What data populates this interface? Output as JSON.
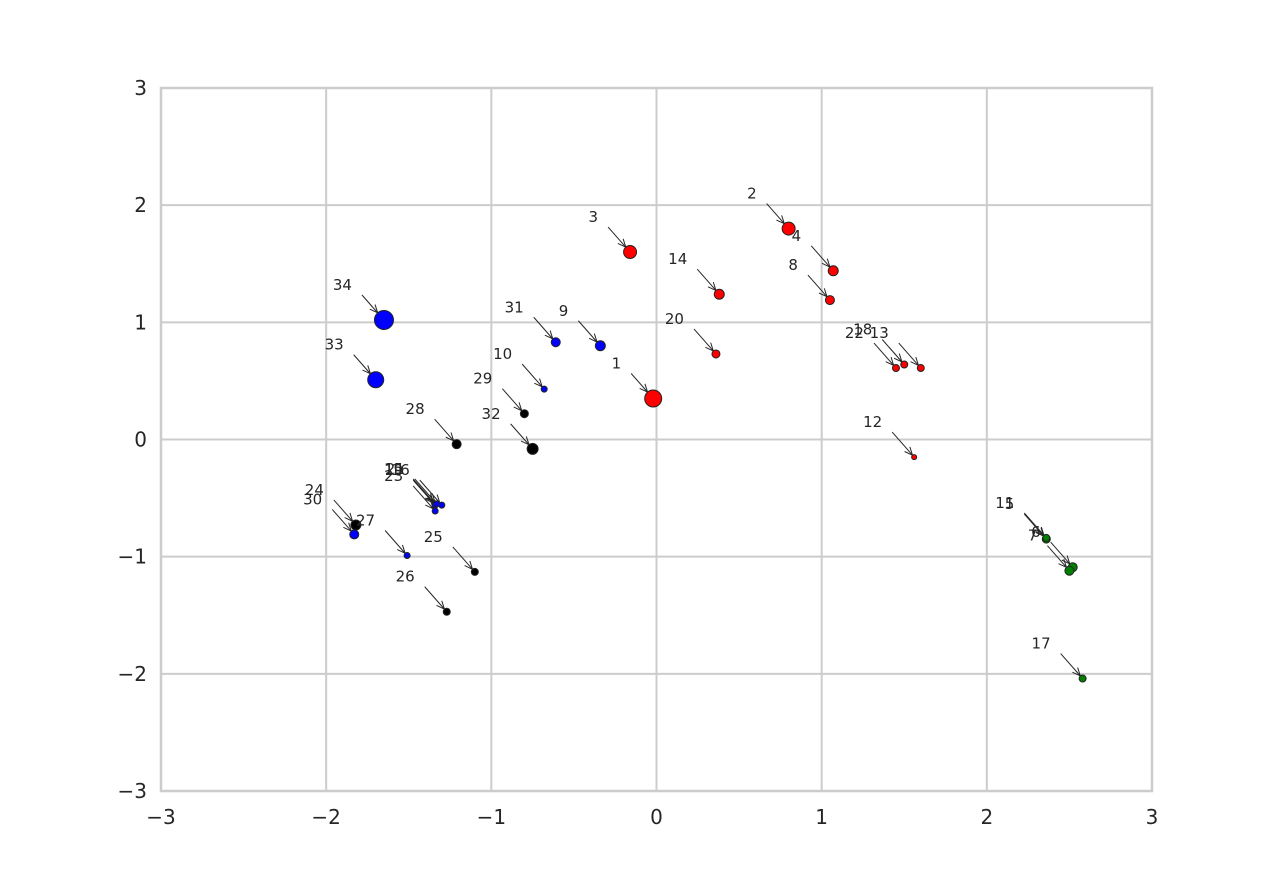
{
  "chart_data": {
    "type": "scatter",
    "title": "",
    "xlabel": "",
    "ylabel": "",
    "xlim": [
      -3,
      3
    ],
    "ylim": [
      -3,
      3
    ],
    "grid": true,
    "xticks": [
      {
        "value": -3,
        "label": "−3"
      },
      {
        "value": -2,
        "label": "−2"
      },
      {
        "value": -1,
        "label": "−1"
      },
      {
        "value": 0,
        "label": "0"
      },
      {
        "value": 1,
        "label": "1"
      },
      {
        "value": 2,
        "label": "2"
      },
      {
        "value": 3,
        "label": "3"
      }
    ],
    "yticks": [
      {
        "value": -3,
        "label": "−3"
      },
      {
        "value": -2,
        "label": "−2"
      },
      {
        "value": -1,
        "label": "−1"
      },
      {
        "value": 0,
        "label": "0"
      },
      {
        "value": 1,
        "label": "1"
      },
      {
        "value": 2,
        "label": "2"
      },
      {
        "value": 3,
        "label": "3"
      }
    ],
    "colors": {
      "red": "#ff0000",
      "blue": "#0000ff",
      "black": "#000000",
      "green": "#008000"
    },
    "points": [
      {
        "label": "1",
        "x": -0.02,
        "y": 0.35,
        "color": "red",
        "size": 8.5
      },
      {
        "label": "2",
        "x": 0.8,
        "y": 1.8,
        "color": "red",
        "size": 6.5
      },
      {
        "label": "3",
        "x": -0.16,
        "y": 1.6,
        "color": "red",
        "size": 6.5
      },
      {
        "label": "4",
        "x": 1.07,
        "y": 1.44,
        "color": "red",
        "size": 5
      },
      {
        "label": "5",
        "x": 2.36,
        "y": -0.85,
        "color": "green",
        "size": 4
      },
      {
        "label": "6",
        "x": 2.52,
        "y": -1.09,
        "color": "green",
        "size": 4.5
      },
      {
        "label": "7",
        "x": 2.5,
        "y": -1.12,
        "color": "green",
        "size": 4.5
      },
      {
        "label": "8",
        "x": 1.05,
        "y": 1.19,
        "color": "red",
        "size": 4.5
      },
      {
        "label": "9",
        "x": -0.34,
        "y": 0.8,
        "color": "blue",
        "size": 5
      },
      {
        "label": "10",
        "x": -0.68,
        "y": 0.43,
        "color": "blue",
        "size": 3
      },
      {
        "label": "11",
        "x": 2.36,
        "y": -0.84,
        "color": "green",
        "size": 3.5
      },
      {
        "label": "12",
        "x": 1.56,
        "y": -0.15,
        "color": "red",
        "size": 2.5
      },
      {
        "label": "13",
        "x": 1.6,
        "y": 0.61,
        "color": "red",
        "size": 3.5
      },
      {
        "label": "14",
        "x": 0.38,
        "y": 1.24,
        "color": "red",
        "size": 5
      },
      {
        "label": "15",
        "x": -1.34,
        "y": -0.55,
        "color": "blue",
        "size": 3
      },
      {
        "label": "16",
        "x": -1.3,
        "y": -0.56,
        "color": "blue",
        "size": 3
      },
      {
        "label": "17",
        "x": 2.58,
        "y": -2.04,
        "color": "green",
        "size": 3.5
      },
      {
        "label": "18",
        "x": 1.5,
        "y": 0.64,
        "color": "red",
        "size": 3.5
      },
      {
        "label": "19",
        "x": -1.34,
        "y": -0.56,
        "color": "blue",
        "size": 3
      },
      {
        "label": "20",
        "x": 0.36,
        "y": 0.73,
        "color": "red",
        "size": 4
      },
      {
        "label": "21",
        "x": -1.33,
        "y": -0.55,
        "color": "blue",
        "size": 3
      },
      {
        "label": "22",
        "x": 1.45,
        "y": 0.61,
        "color": "red",
        "size": 3.5
      },
      {
        "label": "23",
        "x": -1.34,
        "y": -0.61,
        "color": "blue",
        "size": 3
      },
      {
        "label": "24",
        "x": -1.82,
        "y": -0.73,
        "color": "black",
        "size": 5
      },
      {
        "label": "25",
        "x": -1.1,
        "y": -1.13,
        "color": "black",
        "size": 3.5
      },
      {
        "label": "26",
        "x": -1.27,
        "y": -1.47,
        "color": "black",
        "size": 3.5
      },
      {
        "label": "27",
        "x": -1.51,
        "y": -0.99,
        "color": "blue",
        "size": 3
      },
      {
        "label": "28",
        "x": -1.21,
        "y": -0.04,
        "color": "black",
        "size": 4.5
      },
      {
        "label": "29",
        "x": -0.8,
        "y": 0.22,
        "color": "black",
        "size": 4
      },
      {
        "label": "30",
        "x": -1.83,
        "y": -0.81,
        "color": "blue",
        "size": 4.5
      },
      {
        "label": "31",
        "x": -0.61,
        "y": 0.83,
        "color": "blue",
        "size": 4.5
      },
      {
        "label": "32",
        "x": -0.75,
        "y": -0.08,
        "color": "black",
        "size": 5.5
      },
      {
        "label": "33",
        "x": -1.7,
        "y": 0.51,
        "color": "blue",
        "size": 8
      },
      {
        "label": "34",
        "x": -1.65,
        "y": 1.02,
        "color": "blue",
        "size": 9.5
      }
    ]
  }
}
